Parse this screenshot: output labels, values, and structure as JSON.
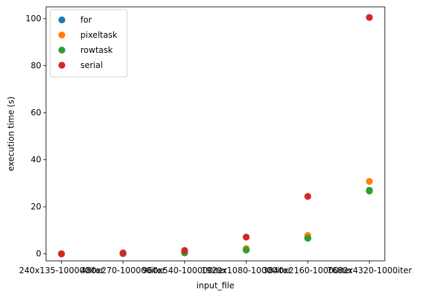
{
  "chart_data": {
    "type": "scatter",
    "title": "",
    "xlabel": "input_file",
    "ylabel": "execution time (s)",
    "categories": [
      "240x135-100000iter",
      "480x270-100000iter",
      "960x540-100000iter",
      "1920x1080-10000iter",
      "3840x2160-10000iter",
      "7680x4320-1000iter"
    ],
    "ylim": [
      -3,
      105
    ],
    "yticks": [
      0,
      20,
      40,
      60,
      80,
      100
    ],
    "grid": false,
    "legend_position": "top-left",
    "series": [
      {
        "name": "for",
        "color": "#1f77b4",
        "values": [
          0.0,
          0.1,
          0.5,
          1.8,
          6.8,
          27.0
        ]
      },
      {
        "name": "pixeltask",
        "color": "#ff7f0e",
        "values": [
          0.0,
          0.1,
          0.5,
          2.2,
          7.8,
          30.8
        ]
      },
      {
        "name": "rowtask",
        "color": "#2ca02c",
        "values": [
          0.0,
          0.1,
          0.4,
          1.6,
          6.6,
          26.7
        ]
      },
      {
        "name": "serial",
        "color": "#d62728",
        "values": [
          0.0,
          0.4,
          1.4,
          7.1,
          24.4,
          100.5
        ]
      }
    ]
  }
}
